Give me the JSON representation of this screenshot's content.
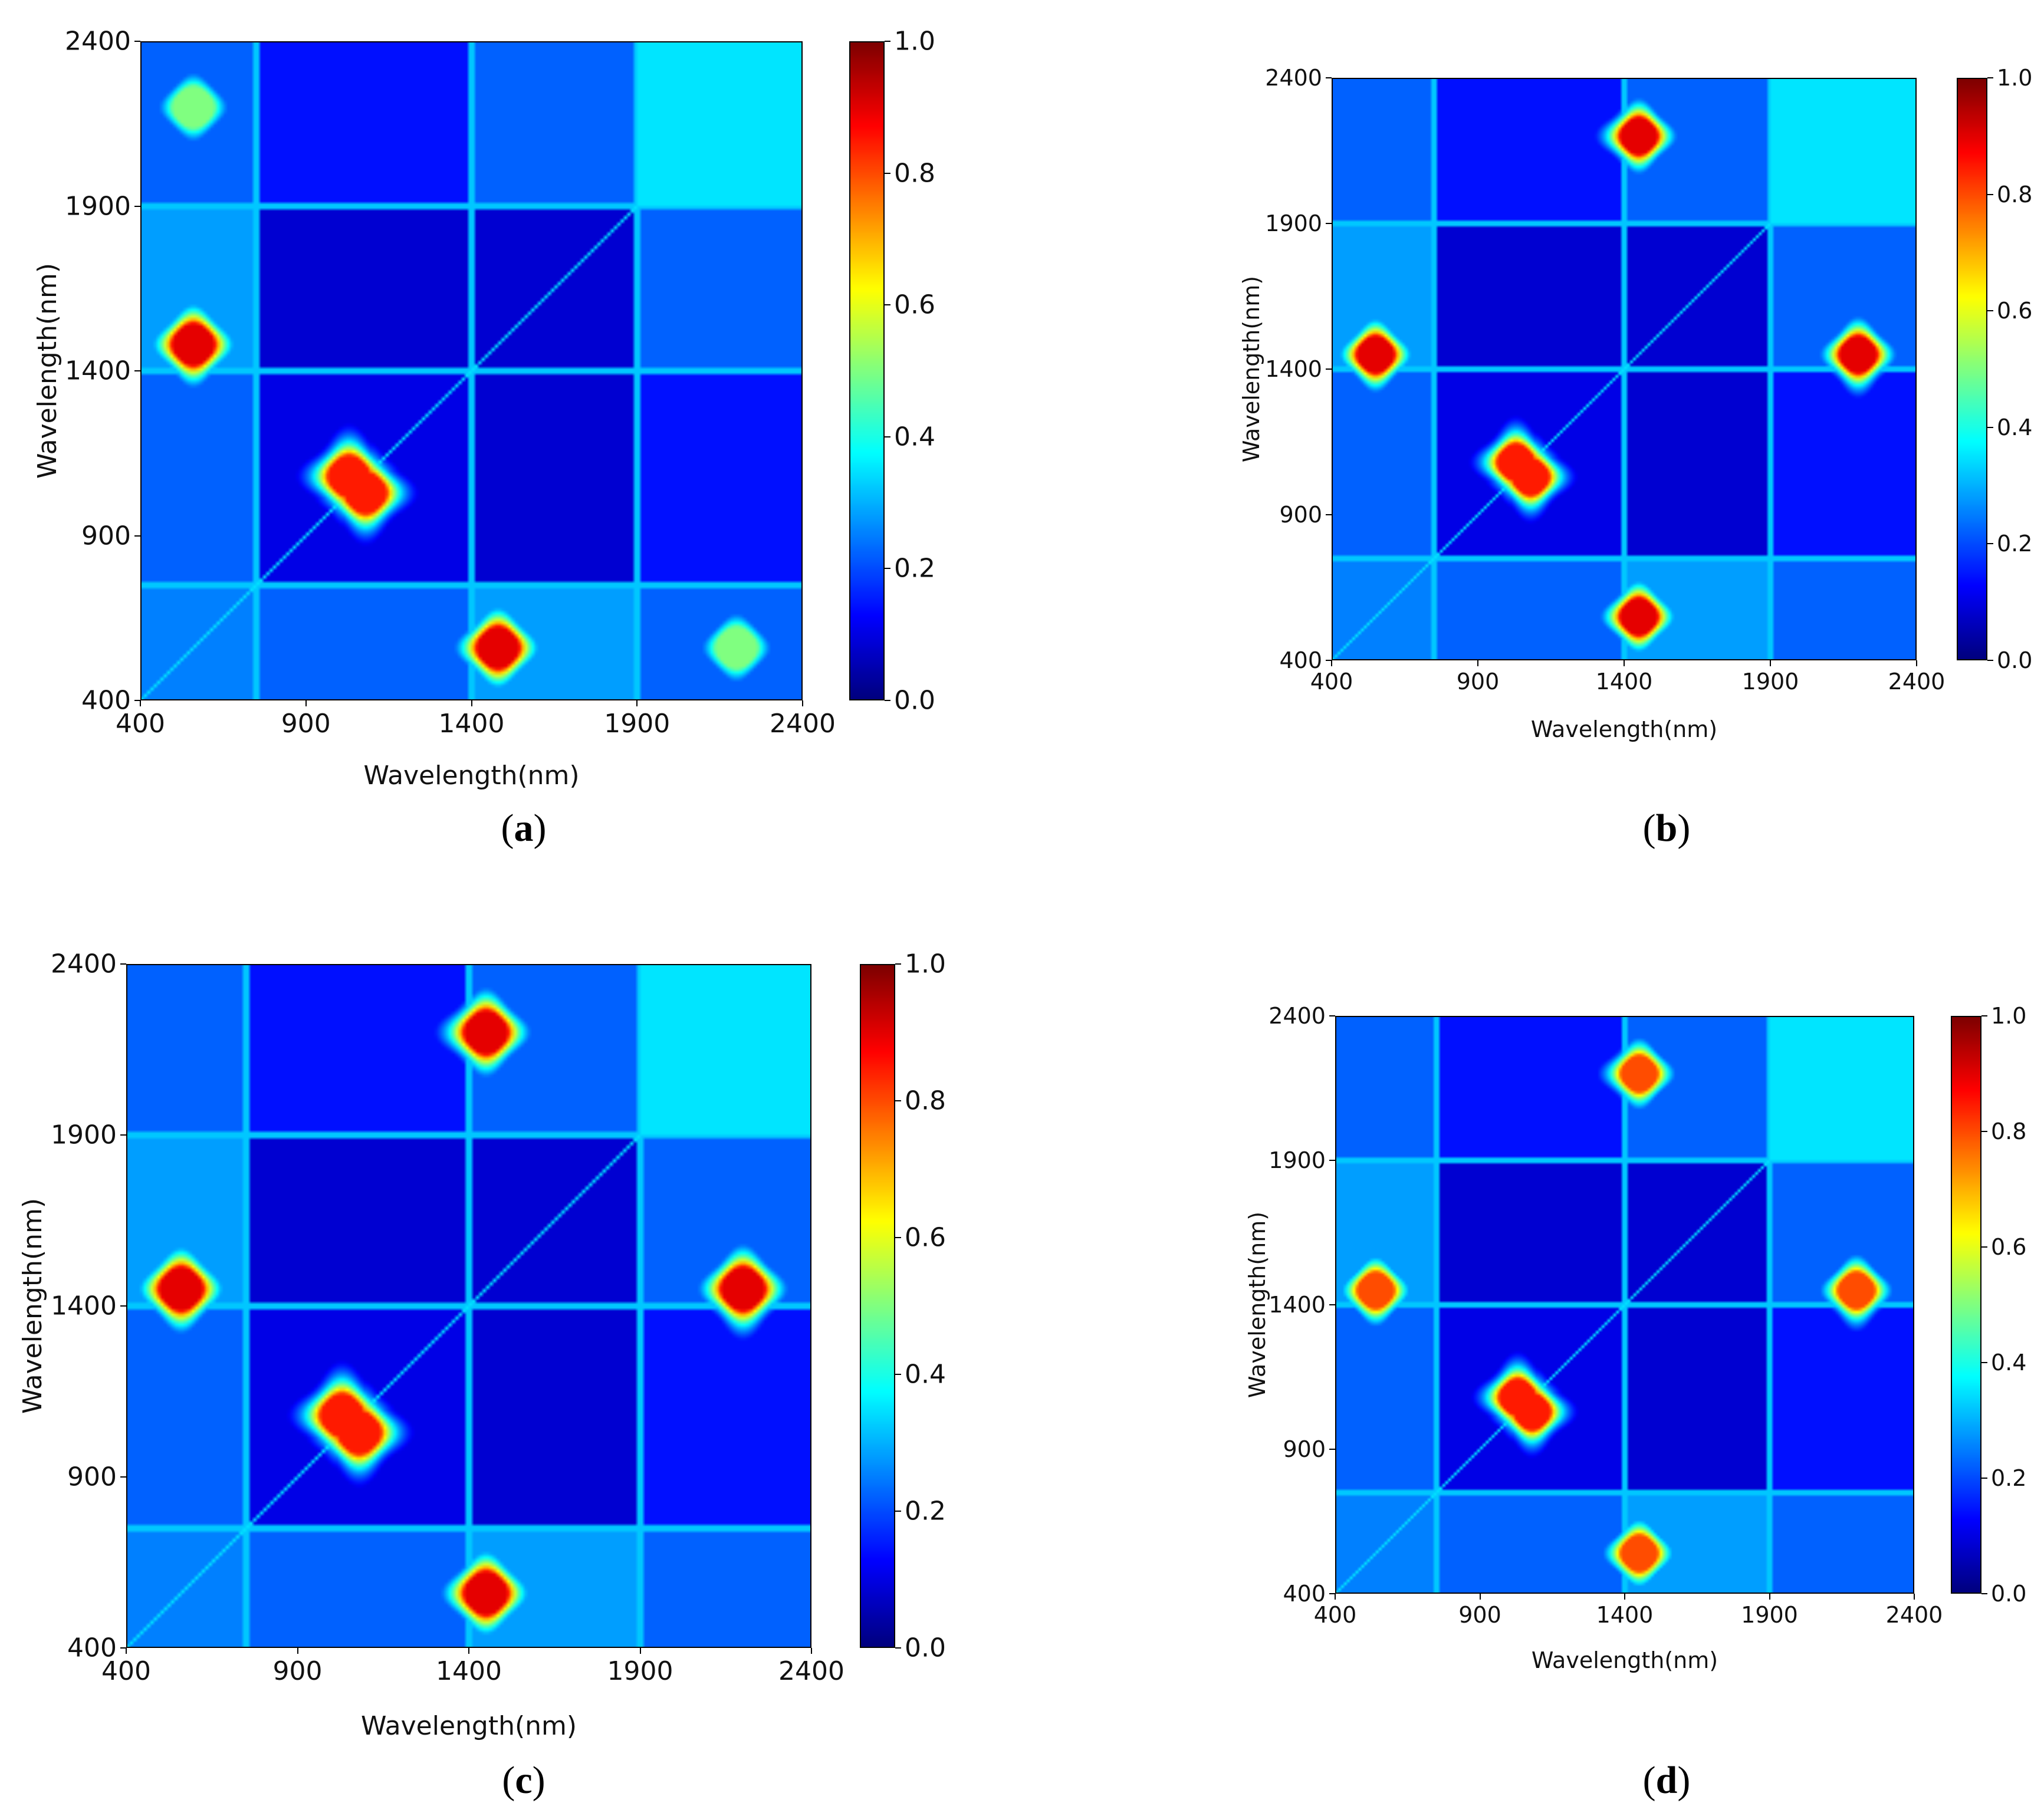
{
  "figure": {
    "panels": [
      {
        "id": "a",
        "label_open": "(",
        "label_letter": "a",
        "label_close": ")"
      },
      {
        "id": "b",
        "label_open": "(",
        "label_letter": "b",
        "label_close": ")"
      },
      {
        "id": "c",
        "label_open": "(",
        "label_letter": "c",
        "label_close": ")"
      },
      {
        "id": "d",
        "label_open": "(",
        "label_letter": "d",
        "label_close": ")"
      }
    ]
  },
  "chart_data": [
    {
      "panel": "a",
      "type": "heatmap",
      "title": "",
      "xlabel": "Wavelength(nm)",
      "ylabel": "Wavelength(nm)",
      "x_ticks": [
        "400",
        "900",
        "1400",
        "1900",
        "2400"
      ],
      "y_ticks": [
        "400",
        "900",
        "1400",
        "1900",
        "2400"
      ],
      "xlim": [
        400,
        2400
      ],
      "ylim": [
        400,
        2400
      ],
      "colorbar": {
        "colormap": "jet",
        "range": [
          0.0,
          1.0
        ],
        "ticks": [
          "0.0",
          "0.2",
          "0.4",
          "0.6",
          "0.8",
          "1.0"
        ]
      },
      "approximate_features": [
        {
          "x": 560,
          "y": 1480,
          "value": 0.9
        },
        {
          "x": 1480,
          "y": 560,
          "value": 0.9
        },
        {
          "x": 1030,
          "y": 1080,
          "value": 0.85
        },
        {
          "x": 1080,
          "y": 1030,
          "value": 0.85
        },
        {
          "x": 560,
          "y": 2200,
          "value": 0.5
        },
        {
          "x": 2200,
          "y": 560,
          "value": 0.5
        }
      ]
    },
    {
      "panel": "b",
      "type": "heatmap",
      "title": "",
      "xlabel": "Wavelength(nm)",
      "ylabel": "Wavelength(nm)",
      "x_ticks": [
        "400",
        "900",
        "1400",
        "1900",
        "2400"
      ],
      "y_ticks": [
        "400",
        "900",
        "1400",
        "1900",
        "2400"
      ],
      "xlim": [
        400,
        2400
      ],
      "ylim": [
        400,
        2400
      ],
      "colorbar": {
        "colormap": "jet",
        "range": [
          0.0,
          1.0
        ],
        "ticks": [
          "0.0",
          "0.2",
          "0.4",
          "0.6",
          "0.8",
          "1.0"
        ]
      },
      "approximate_features": [
        {
          "x": 550,
          "y": 1450,
          "value": 0.9
        },
        {
          "x": 1450,
          "y": 550,
          "value": 0.9
        },
        {
          "x": 1450,
          "y": 2200,
          "value": 0.9
        },
        {
          "x": 2200,
          "y": 1450,
          "value": 0.9
        },
        {
          "x": 1030,
          "y": 1080,
          "value": 0.85
        },
        {
          "x": 1080,
          "y": 1030,
          "value": 0.85
        }
      ]
    },
    {
      "panel": "c",
      "type": "heatmap",
      "title": "",
      "xlabel": "Wavelength(nm)",
      "ylabel": "Wavelength(nm)",
      "x_ticks": [
        "400",
        "900",
        "1400",
        "1900",
        "2400"
      ],
      "y_ticks": [
        "400",
        "900",
        "1400",
        "1900",
        "2400"
      ],
      "xlim": [
        400,
        2400
      ],
      "ylim": [
        400,
        2400
      ],
      "colorbar": {
        "colormap": "jet",
        "range": [
          0.0,
          1.0
        ],
        "ticks": [
          "0.0",
          "0.2",
          "0.4",
          "0.6",
          "0.8",
          "1.0"
        ]
      },
      "approximate_features": [
        {
          "x": 560,
          "y": 1450,
          "value": 0.9
        },
        {
          "x": 1450,
          "y": 560,
          "value": 0.9
        },
        {
          "x": 1450,
          "y": 2200,
          "value": 0.9
        },
        {
          "x": 2200,
          "y": 1450,
          "value": 0.9
        },
        {
          "x": 1030,
          "y": 1080,
          "value": 0.85
        },
        {
          "x": 1080,
          "y": 1030,
          "value": 0.85
        }
      ]
    },
    {
      "panel": "d",
      "type": "heatmap",
      "title": "",
      "xlabel": "Wavelength(nm)",
      "ylabel": "Wavelength(nm)",
      "x_ticks": [
        "400",
        "900",
        "1400",
        "1900",
        "2400"
      ],
      "y_ticks": [
        "400",
        "900",
        "1400",
        "1900",
        "2400"
      ],
      "xlim": [
        400,
        2400
      ],
      "ylim": [
        400,
        2400
      ],
      "colorbar": {
        "colormap": "jet",
        "range": [
          0.0,
          1.0
        ],
        "ticks": [
          "0.0",
          "0.2",
          "0.4",
          "0.6",
          "0.8",
          "1.0"
        ]
      },
      "approximate_features": [
        {
          "x": 540,
          "y": 1450,
          "value": 0.8
        },
        {
          "x": 1450,
          "y": 540,
          "value": 0.8
        },
        {
          "x": 1450,
          "y": 2200,
          "value": 0.8
        },
        {
          "x": 2200,
          "y": 1450,
          "value": 0.8
        },
        {
          "x": 1030,
          "y": 1080,
          "value": 0.85
        },
        {
          "x": 1080,
          "y": 1030,
          "value": 0.85
        }
      ]
    }
  ]
}
